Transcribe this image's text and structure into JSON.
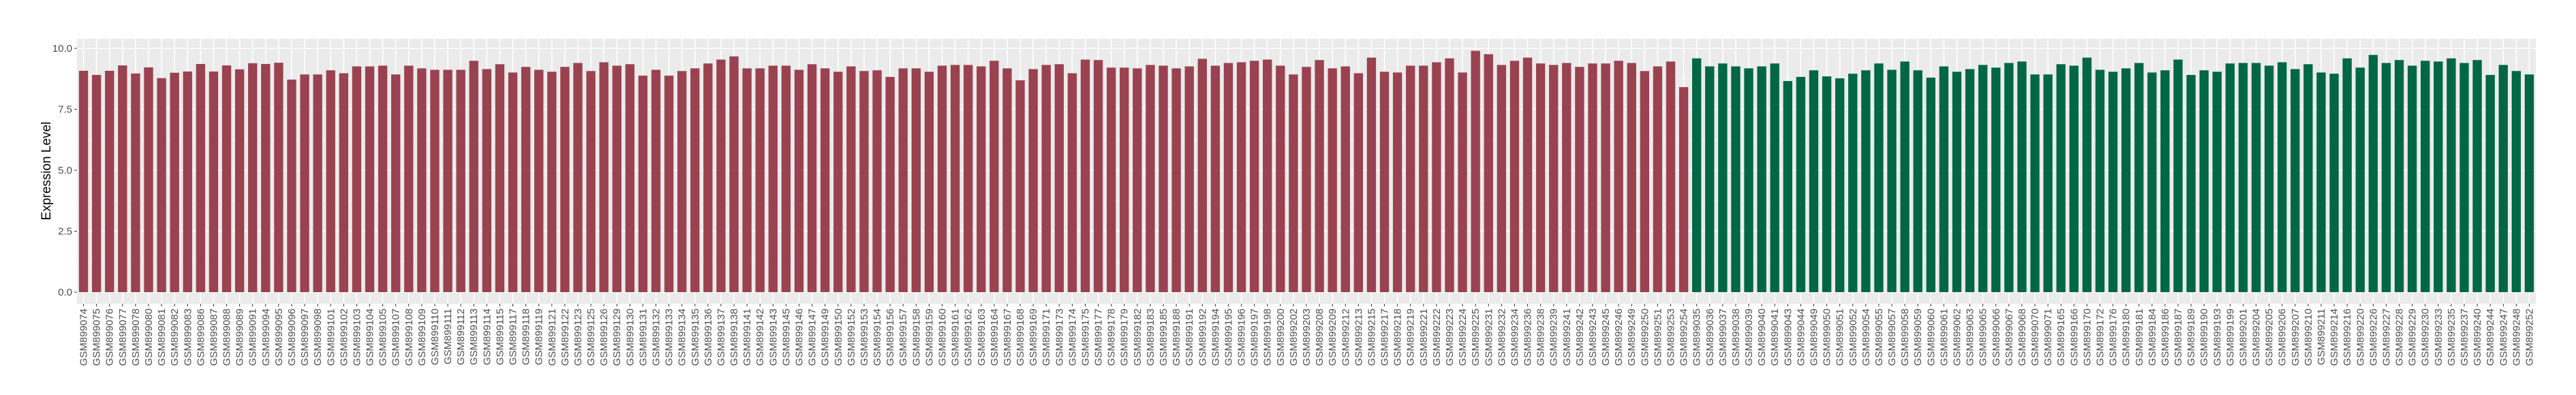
{
  "chart_data": {
    "type": "bar",
    "title": "",
    "xlabel": "",
    "ylabel": "Expression Level",
    "ylim": [
      0,
      10.4
    ],
    "yticks": [
      "0.0",
      "2.5",
      "5.0",
      "7.5",
      "10.0"
    ],
    "grid": true,
    "legend": "none",
    "panel_background": "#ebebeb",
    "series": [
      {
        "color": "#9a4250",
        "categories": [
          "GSM899074",
          "GSM899075",
          "GSM899076",
          "GSM899077",
          "GSM899078",
          "GSM899080",
          "GSM899081",
          "GSM899082",
          "GSM899083",
          "GSM899086",
          "GSM899087",
          "GSM899088",
          "GSM899089",
          "GSM899091",
          "GSM899094",
          "GSM899095",
          "GSM899096",
          "GSM899097",
          "GSM899098",
          "GSM899101",
          "GSM899102",
          "GSM899103",
          "GSM899104",
          "GSM899105",
          "GSM899107",
          "GSM899108",
          "GSM899109",
          "GSM899110",
          "GSM899111",
          "GSM899112",
          "GSM899113",
          "GSM899114",
          "GSM899115",
          "GSM899117",
          "GSM899118",
          "GSM899119",
          "GSM899121",
          "GSM899122",
          "GSM899123",
          "GSM899125",
          "GSM899126",
          "GSM899129",
          "GSM899130",
          "GSM899131",
          "GSM899132",
          "GSM899133",
          "GSM899134",
          "GSM899135",
          "GSM899136",
          "GSM899137",
          "GSM899138",
          "GSM899141",
          "GSM899142",
          "GSM899143",
          "GSM899145",
          "GSM899146",
          "GSM899147",
          "GSM899149",
          "GSM899150",
          "GSM899152",
          "GSM899153",
          "GSM899154",
          "GSM899156",
          "GSM899157",
          "GSM899158",
          "GSM899159",
          "GSM899160",
          "GSM899161",
          "GSM899162",
          "GSM899163",
          "GSM899164",
          "GSM899167",
          "GSM899168",
          "GSM899169",
          "GSM899171",
          "GSM899173",
          "GSM899174",
          "GSM899175",
          "GSM899177",
          "GSM899178",
          "GSM899179",
          "GSM899182",
          "GSM899183",
          "GSM899185",
          "GSM899188",
          "GSM899191",
          "GSM899192",
          "GSM899194",
          "GSM899195",
          "GSM899196",
          "GSM899197",
          "GSM899198",
          "GSM899200",
          "GSM899202",
          "GSM899203",
          "GSM899208",
          "GSM899209",
          "GSM899212",
          "GSM899213",
          "GSM899215",
          "GSM899217",
          "GSM899218",
          "GSM899219",
          "GSM899221",
          "GSM899222",
          "GSM899223",
          "GSM899224",
          "GSM899225",
          "GSM899231",
          "GSM899232",
          "GSM899234",
          "GSM899236",
          "GSM899238",
          "GSM899239",
          "GSM899241",
          "GSM899242",
          "GSM899243",
          "GSM899245",
          "GSM899246",
          "GSM899249",
          "GSM899250",
          "GSM899251",
          "GSM899253",
          "GSM899254"
        ],
        "values": [
          9.08,
          8.91,
          9.08,
          9.3,
          8.97,
          9.22,
          8.78,
          9.0,
          9.05,
          9.36,
          9.05,
          9.3,
          9.14,
          9.39,
          9.36,
          9.41,
          8.72,
          8.93,
          8.93,
          9.1,
          8.98,
          9.26,
          9.26,
          9.29,
          8.93,
          9.29,
          9.18,
          9.12,
          9.12,
          9.12,
          9.49,
          9.15,
          9.35,
          9.01,
          9.24,
          9.12,
          9.04,
          9.24,
          9.4,
          9.07,
          9.43,
          9.29,
          9.35,
          8.88,
          9.12,
          8.88,
          9.07,
          9.18,
          9.38,
          9.54,
          9.67,
          9.18,
          9.18,
          9.29,
          9.29,
          9.12,
          9.35,
          9.18,
          9.04,
          9.26,
          9.07,
          9.1,
          8.83,
          9.18,
          9.18,
          9.04,
          9.29,
          9.32,
          9.32,
          9.26,
          9.49,
          9.18,
          8.69,
          9.15,
          9.32,
          9.35,
          8.98,
          9.54,
          9.52,
          9.21,
          9.21,
          9.18,
          9.32,
          9.29,
          9.18,
          9.26,
          9.57,
          9.29,
          9.4,
          9.43,
          9.49,
          9.54,
          9.29,
          8.93,
          9.24,
          9.52,
          9.18,
          9.26,
          8.98,
          9.62,
          9.04,
          9.01,
          9.29,
          9.29,
          9.43,
          9.59,
          9.01,
          9.9,
          9.76,
          9.32,
          9.49,
          9.62,
          9.38,
          9.32,
          9.4,
          9.24,
          9.38,
          9.38,
          9.49,
          9.4,
          9.07,
          9.26,
          9.46,
          8.41
        ]
      },
      {
        "color": "#006745",
        "categories": [
          "GSM899035",
          "GSM899036",
          "GSM899037",
          "GSM899038",
          "GSM899039",
          "GSM899040",
          "GSM899041",
          "GSM899043",
          "GSM899044",
          "GSM899049",
          "GSM899050",
          "GSM899051",
          "GSM899052",
          "GSM899054",
          "GSM899055",
          "GSM899057",
          "GSM899058",
          "GSM899059",
          "GSM899060",
          "GSM899061",
          "GSM899062",
          "GSM899063",
          "GSM899065",
          "GSM899066",
          "GSM899067",
          "GSM899068",
          "GSM899070",
          "GSM899071",
          "GSM899165",
          "GSM899166",
          "GSM899170",
          "GSM899172",
          "GSM899176",
          "GSM899180",
          "GSM899181",
          "GSM899184",
          "GSM899186",
          "GSM899187",
          "GSM899189",
          "GSM899190",
          "GSM899193",
          "GSM899199",
          "GSM899201",
          "GSM899204",
          "GSM899205",
          "GSM899206",
          "GSM899207",
          "GSM899210",
          "GSM899211",
          "GSM899214",
          "GSM899216",
          "GSM899220",
          "GSM899226",
          "GSM899227",
          "GSM899228",
          "GSM899229",
          "GSM899230",
          "GSM899233",
          "GSM899235",
          "GSM899237",
          "GSM899240",
          "GSM899244",
          "GSM899247",
          "GSM899248",
          "GSM899252"
        ],
        "values": [
          9.59,
          9.26,
          9.38,
          9.26,
          9.18,
          9.26,
          9.38,
          8.66,
          8.83,
          9.1,
          8.85,
          8.77,
          8.96,
          9.1,
          9.38,
          9.12,
          9.46,
          9.1,
          8.8,
          9.26,
          9.04,
          9.15,
          9.32,
          9.21,
          9.4,
          9.46,
          8.93,
          8.93,
          9.35,
          9.29,
          9.62,
          9.12,
          9.04,
          9.18,
          9.4,
          9.01,
          9.1,
          9.54,
          8.91,
          9.1,
          9.04,
          9.38,
          9.4,
          9.4,
          9.29,
          9.43,
          9.15,
          9.35,
          9.01,
          8.96,
          9.59,
          9.21,
          9.73,
          9.4,
          9.52,
          9.29,
          9.49,
          9.46,
          9.59,
          9.4,
          9.52,
          8.91,
          9.32,
          9.07,
          8.93
        ]
      }
    ]
  }
}
